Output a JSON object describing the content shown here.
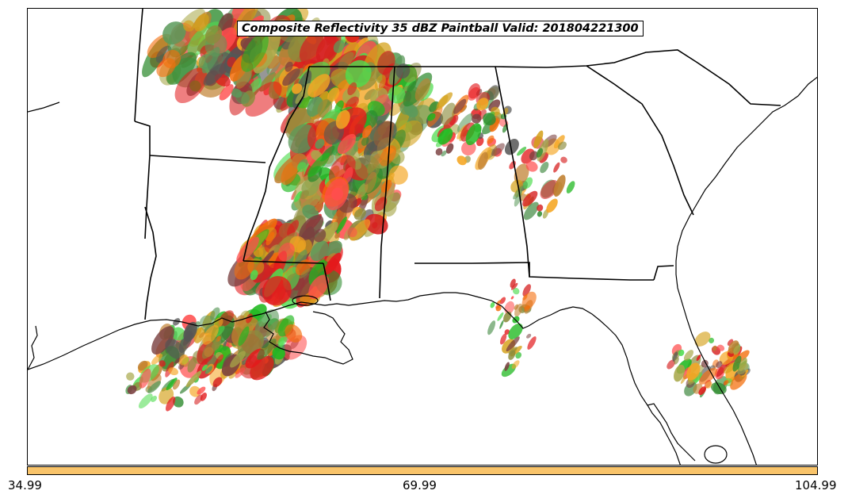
{
  "title": "Composite Reflectivity 35 dBZ Paintball Valid: 201804221300",
  "colorbar": {
    "color": "#f9c46a",
    "labels": [
      "34.99",
      "69.99",
      "104.99"
    ]
  },
  "colors": {
    "member_palette": [
      "#e31a1c",
      "#f46d0a",
      "#f5a623",
      "#d62020",
      "#ff4d4d",
      "#1fb81f",
      "#4fdc4f",
      "#2e8b2e",
      "#5b9a5b",
      "#8c8c3c",
      "#a8a84a",
      "#7a4040",
      "#555555",
      "#c08030",
      "#d4a017"
    ]
  }
}
